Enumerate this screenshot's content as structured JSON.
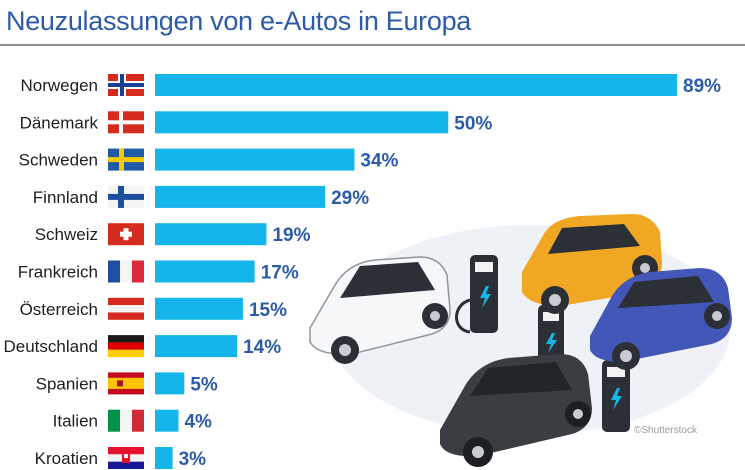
{
  "chart_data": {
    "type": "bar",
    "orientation": "horizontal",
    "title": "Neuzulassungen von e-Autos in Europa",
    "xlabel": "",
    "ylabel": "",
    "unit": "%",
    "xlim": [
      0,
      89
    ],
    "categories": [
      "Norwegen",
      "Dänemark",
      "Schweden",
      "Finnland",
      "Schweiz",
      "Frankreich",
      "Österreich",
      "Deutschland",
      "Spanien",
      "Italien",
      "Kroatien"
    ],
    "values": [
      89,
      50,
      34,
      29,
      19,
      17,
      15,
      14,
      5,
      4,
      3
    ],
    "value_labels": [
      "89%",
      "50%",
      "34%",
      "29%",
      "19%",
      "17%",
      "15%",
      "14%",
      "5%",
      "4%",
      "3%"
    ],
    "flags": [
      "flag-norway-icon",
      "flag-denmark-icon",
      "flag-sweden-icon",
      "flag-finland-icon",
      "flag-switzerland-icon",
      "flag-france-icon",
      "flag-austria-icon",
      "flag-germany-icon",
      "flag-spain-icon",
      "flag-italy-icon",
      "flag-croatia-icon"
    ],
    "bar_color": "#13b5ea",
    "grid": false,
    "legend": "none"
  },
  "illustration": {
    "name": "electric-cars-charging-illustration",
    "credit": "©Shutterstock"
  },
  "colors": {
    "title": "#2c5ca8",
    "value_text": "#2c5ca8",
    "bar": "#13b5ea"
  }
}
